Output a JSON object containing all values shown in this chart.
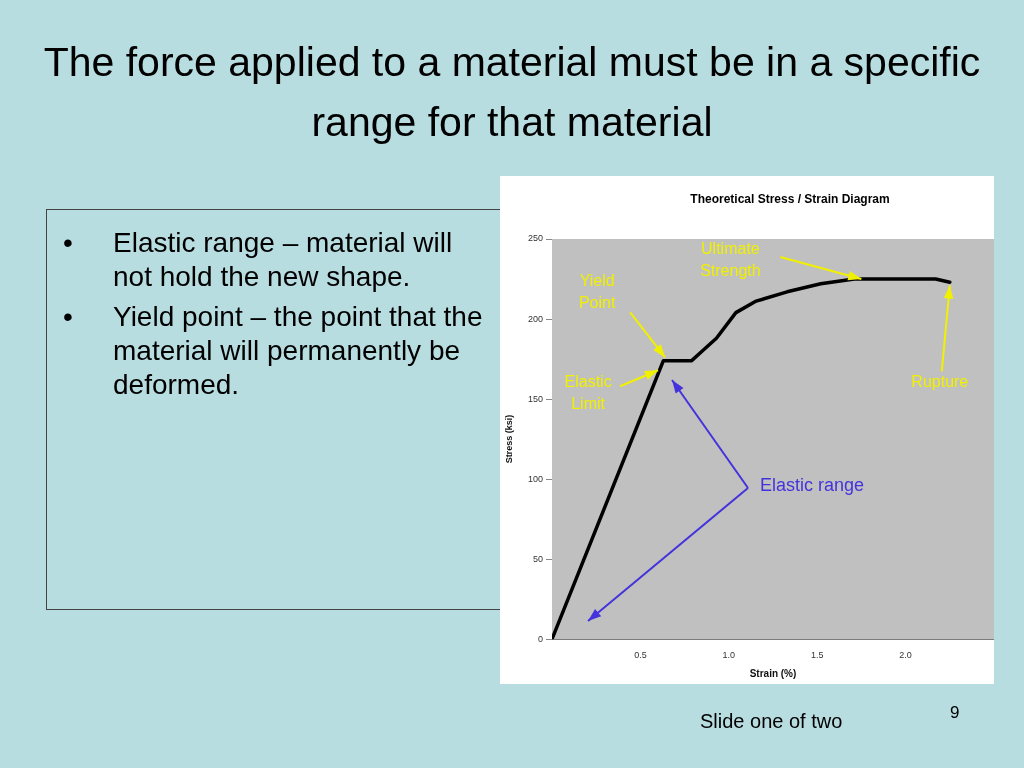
{
  "chart_data": {
    "type": "line",
    "title": "The force applied to a material must be in a specific range for that material",
    "subtitle": "Theoretical Stress / Strain Diagram",
    "xlabel": "Strain (%)",
    "ylabel": "Stress (ksi)",
    "x": [
      0,
      0.63,
      0.79,
      0.85,
      0.93,
      1.04,
      1.15,
      1.33,
      1.52,
      1.71,
      1.99,
      2.17,
      2.25
    ],
    "series": [
      {
        "color": "#000000",
        "values": [
          0,
          174,
          174,
          180,
          188,
          204,
          211,
          217,
          222,
          225,
          225,
          225,
          223
        ]
      }
    ],
    "xlim": [
      0,
      2.5
    ],
    "xticks": [
      {
        "value": 0.5,
        "label": "0.5"
      },
      {
        "value": 1,
        "label": "1.0"
      },
      {
        "value": 1.5,
        "label": "1.5"
      },
      {
        "value": 2,
        "label": "2.0"
      }
    ],
    "ylim": [
      0,
      250
    ],
    "yticks": [
      0,
      50,
      100,
      150,
      200,
      250
    ],
    "grid": false,
    "legend": false,
    "marker": "none",
    "line_style": "solid",
    "annotations": [
      {
        "text": "Ultimate Strength",
        "x": 1.75,
        "y": 225
      },
      {
        "text": "Yield Point",
        "x": 0.64,
        "y": 176
      },
      {
        "text": "Elastic Limit",
        "x": 0.6,
        "y": 168
      },
      {
        "text": "Rupture",
        "x": 2.25,
        "y": 221
      },
      "Elastic range",
      "• Elastic range – material will not hold the new shape.",
      "• Yield point – the point that the material will permanently be deformed.",
      "Slide one of two",
      "9"
    ]
  }
}
